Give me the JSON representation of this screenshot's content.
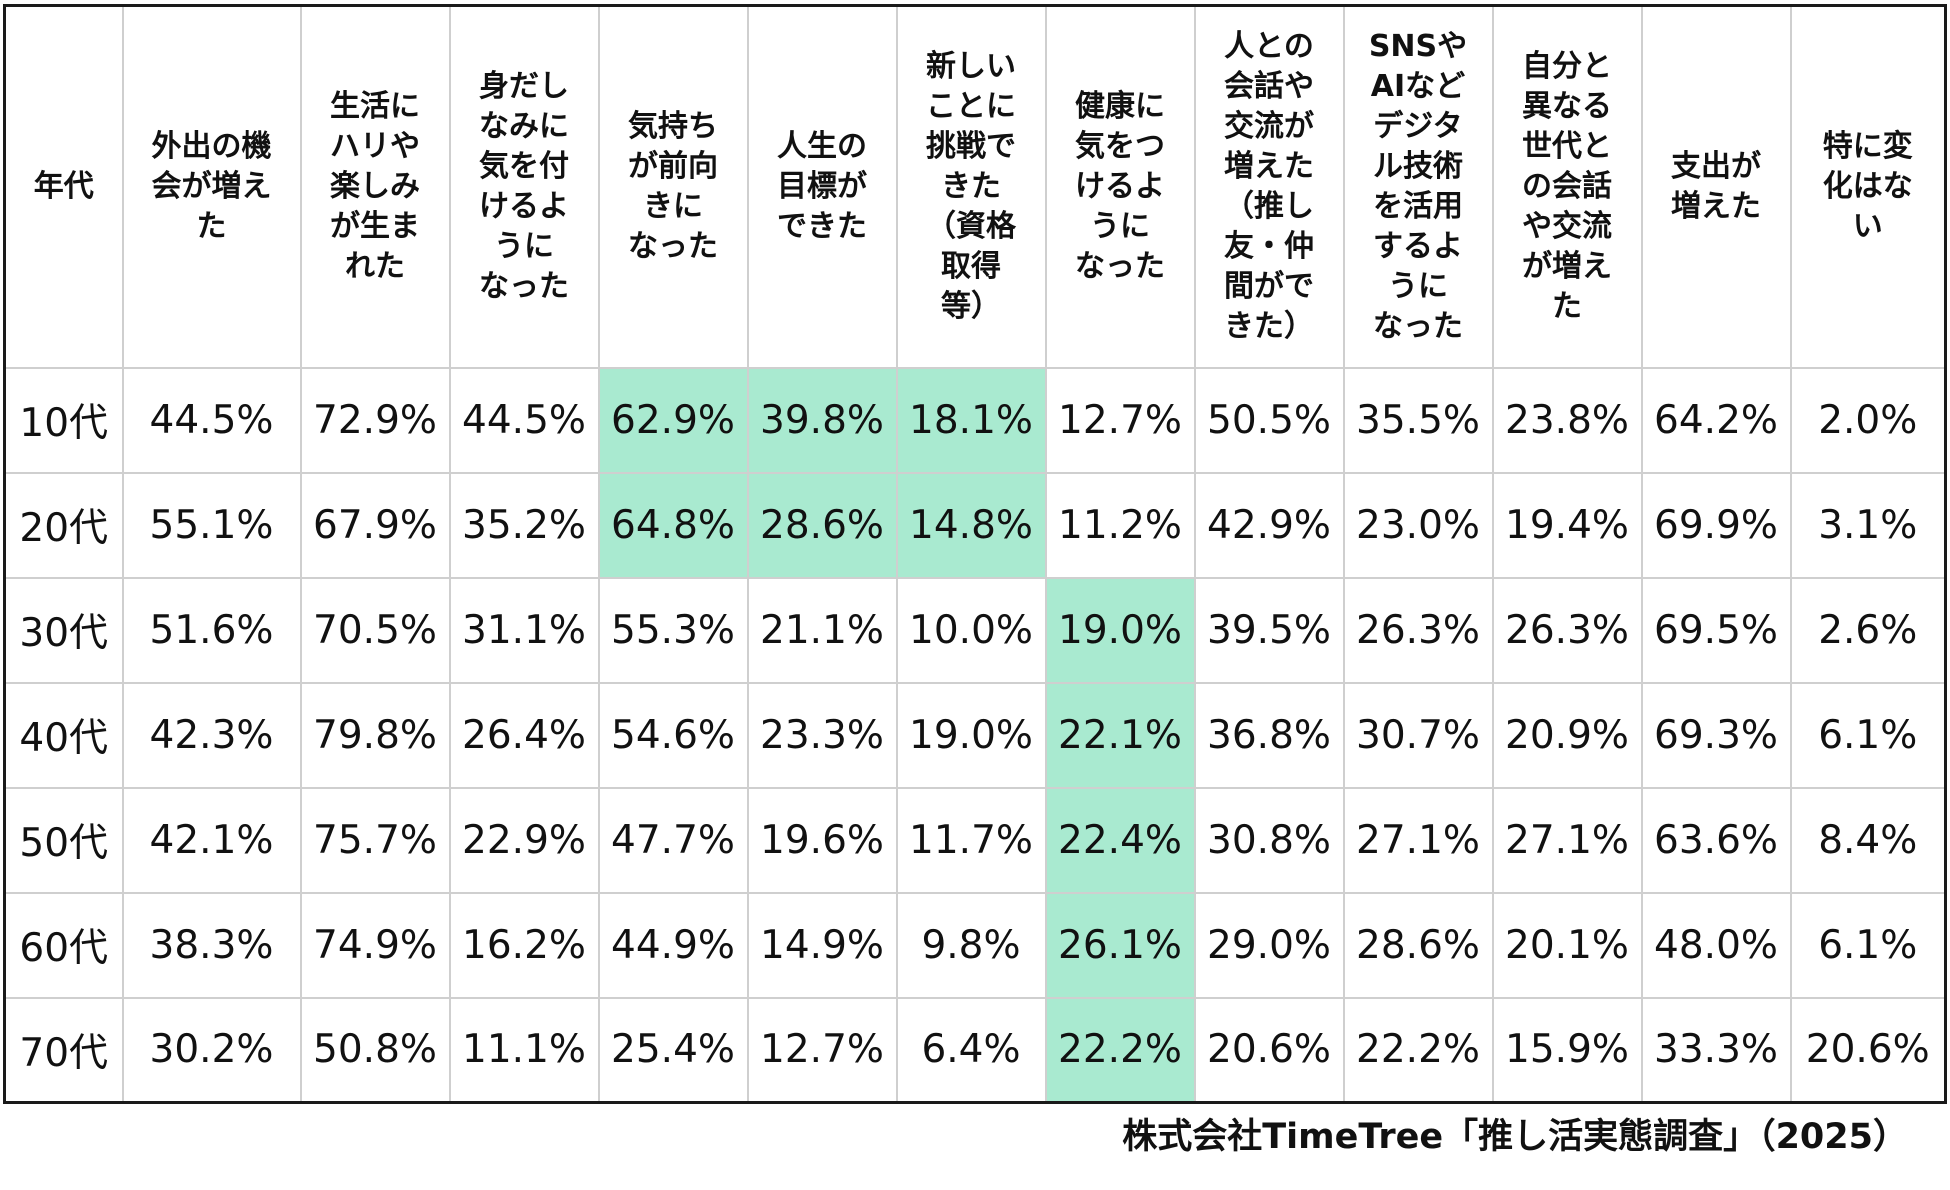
{
  "chart_data": {
    "type": "table",
    "row_header_label": "年代",
    "columns": [
      "外出の機会が増えた",
      "生活にハリや楽しみが生まれた",
      "身だしなみに気を付けるようになった",
      "気持ちが前向きになった",
      "人生の目標ができた",
      "新しいことに挑戦できた（資格取得等）",
      "健康に気をつけるようになった",
      "人との会話や交流が増えた（推し友・仲間ができた）",
      "SNSやAIなどデジタル技術を活用するようになった",
      "自分と異なる世代との会話や交流が増えた",
      "支出が増えた",
      "特に変化はない"
    ],
    "header_display": [
      "外出の機\n会が増え\nた",
      "生活に\nハリや\n楽しみ\nが生ま\nれた",
      "身だし\nなみに\n気を付\nけるよ\nうに\nなった",
      "気持ち\nが前向\nきに\nなった",
      "人生の\n目標が\nできた",
      "新しい\nことに\n挑戦で\nきた\n（資格\n取得\n等）",
      "健康に\n気をつ\nけるよ\nうに\nなった",
      "人との\n会話や\n交流が\n増えた\n（推し\n友・仲\n間がで\nきた）",
      "SNSや\nAIなど\nデジタ\nル技術\nを活用\nするよ\nうに\nなった",
      "自分と\n異なる\n世代と\nの会話\nや交流\nが増え\nた",
      "支出が\n増えた",
      "特に変\n化はな\nい"
    ],
    "rows": [
      {
        "label": "10代",
        "values": [
          "44.5%",
          "72.9%",
          "44.5%",
          "62.9%",
          "39.8%",
          "18.1%",
          "12.7%",
          "50.5%",
          "35.5%",
          "23.8%",
          "64.2%",
          "2.0%"
        ]
      },
      {
        "label": "20代",
        "values": [
          "55.1%",
          "67.9%",
          "35.2%",
          "64.8%",
          "28.6%",
          "14.8%",
          "11.2%",
          "42.9%",
          "23.0%",
          "19.4%",
          "69.9%",
          "3.1%"
        ]
      },
      {
        "label": "30代",
        "values": [
          "51.6%",
          "70.5%",
          "31.1%",
          "55.3%",
          "21.1%",
          "10.0%",
          "19.0%",
          "39.5%",
          "26.3%",
          "26.3%",
          "69.5%",
          "2.6%"
        ]
      },
      {
        "label": "40代",
        "values": [
          "42.3%",
          "79.8%",
          "26.4%",
          "54.6%",
          "23.3%",
          "19.0%",
          "22.1%",
          "36.8%",
          "30.7%",
          "20.9%",
          "69.3%",
          "6.1%"
        ]
      },
      {
        "label": "50代",
        "values": [
          "42.1%",
          "75.7%",
          "22.9%",
          "47.7%",
          "19.6%",
          "11.7%",
          "22.4%",
          "30.8%",
          "27.1%",
          "27.1%",
          "63.6%",
          "8.4%"
        ]
      },
      {
        "label": "60代",
        "values": [
          "38.3%",
          "74.9%",
          "16.2%",
          "44.9%",
          "14.9%",
          "9.8%",
          "26.1%",
          "29.0%",
          "28.6%",
          "20.1%",
          "48.0%",
          "6.1%"
        ]
      },
      {
        "label": "70代",
        "values": [
          "30.2%",
          "50.8%",
          "11.1%",
          "25.4%",
          "12.7%",
          "6.4%",
          "22.2%",
          "20.6%",
          "22.2%",
          "15.9%",
          "33.3%",
          "20.6%"
        ]
      }
    ],
    "highlighted_cells": [
      [
        0,
        3
      ],
      [
        0,
        4
      ],
      [
        0,
        5
      ],
      [
        1,
        3
      ],
      [
        1,
        4
      ],
      [
        1,
        5
      ],
      [
        2,
        6
      ],
      [
        3,
        6
      ],
      [
        4,
        6
      ],
      [
        5,
        6
      ],
      [
        6,
        6
      ]
    ],
    "highlight_color": "#a9ead0",
    "source": "株式会社TimeTree「推し活実態調査」（2025）"
  }
}
